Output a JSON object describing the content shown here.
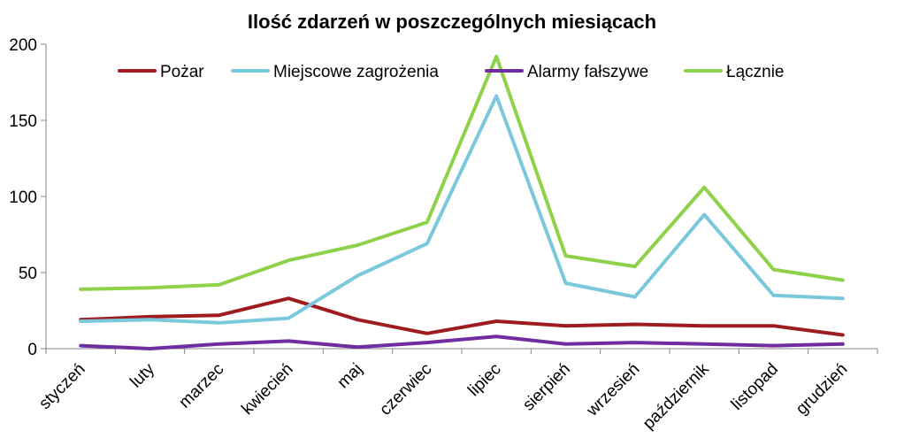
{
  "chart_data": {
    "type": "line",
    "title": "Ilość zdarzeń w poszczególnych miesiącach",
    "xlabel": "",
    "ylabel": "",
    "ylim": [
      0,
      200
    ],
    "yticks": [
      0,
      50,
      100,
      150,
      200
    ],
    "grid": false,
    "legend_position": "top",
    "categories": [
      "styczeń",
      "luty",
      "marzec",
      "kwiecień",
      "maj",
      "czerwiec",
      "lipiec",
      "sierpień",
      "wrzesień",
      "październik",
      "listopad",
      "grudzień"
    ],
    "series": [
      {
        "name": "Pożar",
        "color": "#9E1B1F",
        "values": [
          19,
          21,
          22,
          33,
          19,
          10,
          18,
          15,
          16,
          15,
          15,
          9
        ]
      },
      {
        "name": "Miejscowe zagrożenia",
        "color": "#7AC8DC",
        "values": [
          18,
          19,
          17,
          20,
          48,
          69,
          166,
          43,
          34,
          88,
          35,
          33
        ]
      },
      {
        "name": "Alarmy fałszywe",
        "color": "#6F2DA0",
        "values": [
          2,
          0,
          3,
          5,
          1,
          4,
          8,
          3,
          4,
          3,
          2,
          3
        ]
      },
      {
        "name": "Łącznie",
        "color": "#8DD24A",
        "values": [
          39,
          40,
          42,
          58,
          68,
          83,
          192,
          61,
          54,
          106,
          52,
          45
        ]
      }
    ]
  }
}
